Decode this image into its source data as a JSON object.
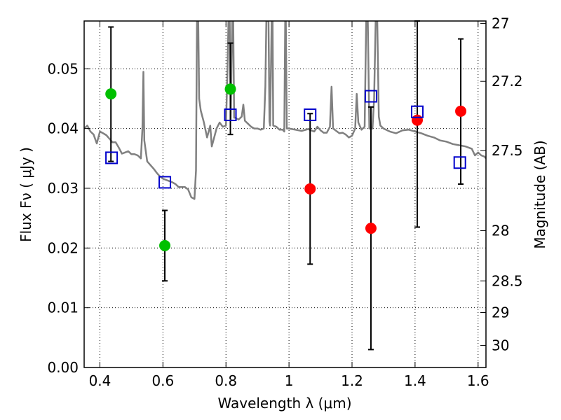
{
  "chart_data": {
    "type": "scatter",
    "xlabel": "Wavelength  λ (μm)",
    "ylabel": "Flux  Fν  ( μJy )",
    "ylabel_right": "Magnitude (AB)",
    "xlim": [
      0.35,
      1.625
    ],
    "ylim": [
      0.0,
      0.058
    ],
    "x_ticks": [
      0.4,
      0.6,
      0.8,
      1.0,
      1.2,
      1.4,
      1.6
    ],
    "x_tick_labels": [
      "0.4",
      "0.6",
      "0.8",
      "1",
      "1.2",
      "1.4",
      "1.6"
    ],
    "y_ticks": [
      0.0,
      0.01,
      0.02,
      0.03,
      0.04,
      0.05
    ],
    "y_tick_labels": [
      "0.00",
      "0.01",
      "0.02",
      "0.03",
      "0.04",
      "0.05"
    ],
    "right_ticks": [
      {
        "mag": 27.0,
        "label": "27"
      },
      {
        "mag": 27.2,
        "label": "27.2"
      },
      {
        "mag": 27.5,
        "label": "27.5"
      },
      {
        "mag": 28.0,
        "label": "28"
      },
      {
        "mag": 28.5,
        "label": "28.5"
      },
      {
        "mag": 29.0,
        "label": "29"
      },
      {
        "mag": 30.0,
        "label": "30"
      }
    ],
    "right_tick_flux": [
      0.0576,
      0.0479,
      0.0363,
      0.0229,
      0.0145,
      0.0092,
      0.0037
    ],
    "grid": true,
    "series": [
      {
        "name": "detections (green)",
        "color": "#00c000",
        "marker": "filled-circle",
        "points": [
          {
            "x": 0.435,
            "y": 0.0458,
            "err_lo": 0.0345,
            "err_hi": 0.057
          },
          {
            "x": 0.606,
            "y": 0.0204,
            "err_lo": 0.0145,
            "err_hi": 0.0263
          },
          {
            "x": 0.814,
            "y": 0.0466,
            "err_lo": 0.039,
            "err_hi": 0.0543
          }
        ]
      },
      {
        "name": "observed (red)",
        "color": "#ff0000",
        "marker": "filled-circle",
        "points": [
          {
            "x": 1.067,
            "y": 0.0299,
            "err_lo": 0.0173,
            "err_hi": 0.0425
          },
          {
            "x": 1.26,
            "y": 0.0233,
            "err_lo": 0.003,
            "err_hi": 0.0436
          },
          {
            "x": 1.407,
            "y": 0.0414,
            "err_lo": 0.0235,
            "err_hi": 0.058
          },
          {
            "x": 1.545,
            "y": 0.0429,
            "err_lo": 0.0307,
            "err_hi": 0.055
          }
        ]
      },
      {
        "name": "model photometry (blue squares)",
        "color": "#0000cc",
        "marker": "open-square",
        "points": [
          {
            "x": 0.437,
            "y": 0.0351
          },
          {
            "x": 0.606,
            "y": 0.031
          },
          {
            "x": 0.814,
            "y": 0.0423
          },
          {
            "x": 1.067,
            "y": 0.0423
          },
          {
            "x": 1.26,
            "y": 0.0454
          },
          {
            "x": 1.407,
            "y": 0.0428
          },
          {
            "x": 1.542,
            "y": 0.0343
          }
        ]
      }
    ],
    "spectrum": {
      "name": "model SED",
      "color": "#808080",
      "points": [
        [
          0.35,
          0.04
        ],
        [
          0.36,
          0.0405
        ],
        [
          0.37,
          0.0395
        ],
        [
          0.38,
          0.039
        ],
        [
          0.39,
          0.0375
        ],
        [
          0.4,
          0.0395
        ],
        [
          0.41,
          0.0392
        ],
        [
          0.42,
          0.0389
        ],
        [
          0.43,
          0.0383
        ],
        [
          0.44,
          0.0377
        ],
        [
          0.45,
          0.0377
        ],
        [
          0.46,
          0.0368
        ],
        [
          0.47,
          0.0358
        ],
        [
          0.48,
          0.036
        ],
        [
          0.49,
          0.0362
        ],
        [
          0.5,
          0.0357
        ],
        [
          0.51,
          0.0357
        ],
        [
          0.52,
          0.0355
        ],
        [
          0.53,
          0.035
        ],
        [
          0.535,
          0.04
        ],
        [
          0.538,
          0.0495
        ],
        [
          0.541,
          0.038
        ],
        [
          0.55,
          0.0345
        ],
        [
          0.56,
          0.0339
        ],
        [
          0.57,
          0.0333
        ],
        [
          0.58,
          0.0326
        ],
        [
          0.59,
          0.032
        ],
        [
          0.6,
          0.0316
        ],
        [
          0.61,
          0.0314
        ],
        [
          0.62,
          0.0312
        ],
        [
          0.63,
          0.031
        ],
        [
          0.64,
          0.0307
        ],
        [
          0.65,
          0.0302
        ],
        [
          0.66,
          0.0302
        ],
        [
          0.67,
          0.0302
        ],
        [
          0.68,
          0.0298
        ],
        [
          0.69,
          0.0285
        ],
        [
          0.7,
          0.0282
        ],
        [
          0.705,
          0.033
        ],
        [
          0.708,
          0.058
        ],
        [
          0.712,
          0.058
        ],
        [
          0.715,
          0.045
        ],
        [
          0.72,
          0.043
        ],
        [
          0.73,
          0.041
        ],
        [
          0.74,
          0.0385
        ],
        [
          0.75,
          0.0405
        ],
        [
          0.755,
          0.037
        ],
        [
          0.76,
          0.038
        ],
        [
          0.77,
          0.04
        ],
        [
          0.78,
          0.041
        ],
        [
          0.79,
          0.0403
        ],
        [
          0.8,
          0.0405
        ],
        [
          0.805,
          0.05
        ],
        [
          0.808,
          0.058
        ],
        [
          0.812,
          0.058
        ],
        [
          0.815,
          0.0415
        ],
        [
          0.82,
          0.058
        ],
        [
          0.823,
          0.058
        ],
        [
          0.826,
          0.0418
        ],
        [
          0.83,
          0.0418
        ],
        [
          0.84,
          0.0415
        ],
        [
          0.85,
          0.042
        ],
        [
          0.855,
          0.044
        ],
        [
          0.86,
          0.0413
        ],
        [
          0.87,
          0.0408
        ],
        [
          0.88,
          0.0403
        ],
        [
          0.89,
          0.04
        ],
        [
          0.9,
          0.04
        ],
        [
          0.91,
          0.0398
        ],
        [
          0.92,
          0.04
        ],
        [
          0.925,
          0.047
        ],
        [
          0.928,
          0.058
        ],
        [
          0.935,
          0.058
        ],
        [
          0.938,
          0.0412
        ],
        [
          0.94,
          0.0405
        ],
        [
          0.945,
          0.058
        ],
        [
          0.948,
          0.058
        ],
        [
          0.95,
          0.0405
        ],
        [
          0.96,
          0.0403
        ],
        [
          0.97,
          0.0398
        ],
        [
          0.98,
          0.0398
        ],
        [
          0.985,
          0.0395
        ],
        [
          0.988,
          0.058
        ],
        [
          0.99,
          0.058
        ],
        [
          0.993,
          0.04
        ],
        [
          1.0,
          0.04
        ],
        [
          1.02,
          0.0398
        ],
        [
          1.04,
          0.0396
        ],
        [
          1.06,
          0.0399
        ],
        [
          1.07,
          0.0397
        ],
        [
          1.08,
          0.0395
        ],
        [
          1.09,
          0.0403
        ],
        [
          1.1,
          0.0397
        ],
        [
          1.11,
          0.0393
        ],
        [
          1.12,
          0.0393
        ],
        [
          1.13,
          0.0403
        ],
        [
          1.135,
          0.047
        ],
        [
          1.14,
          0.04
        ],
        [
          1.15,
          0.0396
        ],
        [
          1.16,
          0.0392
        ],
        [
          1.17,
          0.0393
        ],
        [
          1.18,
          0.039
        ],
        [
          1.19,
          0.0385
        ],
        [
          1.2,
          0.0388
        ],
        [
          1.21,
          0.04
        ],
        [
          1.215,
          0.0458
        ],
        [
          1.22,
          0.041
        ],
        [
          1.23,
          0.0398
        ],
        [
          1.24,
          0.0403
        ],
        [
          1.245,
          0.058
        ],
        [
          1.25,
          0.058
        ],
        [
          1.255,
          0.04
        ],
        [
          1.265,
          0.04
        ],
        [
          1.27,
          0.045
        ],
        [
          1.275,
          0.058
        ],
        [
          1.28,
          0.058
        ],
        [
          1.285,
          0.042
        ],
        [
          1.29,
          0.0405
        ],
        [
          1.3,
          0.04
        ],
        [
          1.32,
          0.0395
        ],
        [
          1.34,
          0.0392
        ],
        [
          1.36,
          0.0397
        ],
        [
          1.38,
          0.0398
        ],
        [
          1.4,
          0.0395
        ],
        [
          1.42,
          0.0392
        ],
        [
          1.44,
          0.0388
        ],
        [
          1.46,
          0.0385
        ],
        [
          1.48,
          0.038
        ],
        [
          1.5,
          0.0378
        ],
        [
          1.52,
          0.0374
        ],
        [
          1.54,
          0.0372
        ],
        [
          1.56,
          0.037
        ],
        [
          1.58,
          0.0366
        ],
        [
          1.59,
          0.0355
        ],
        [
          1.6,
          0.036
        ],
        [
          1.61,
          0.0355
        ],
        [
          1.62,
          0.0353
        ],
        [
          1.625,
          0.035
        ]
      ]
    }
  }
}
